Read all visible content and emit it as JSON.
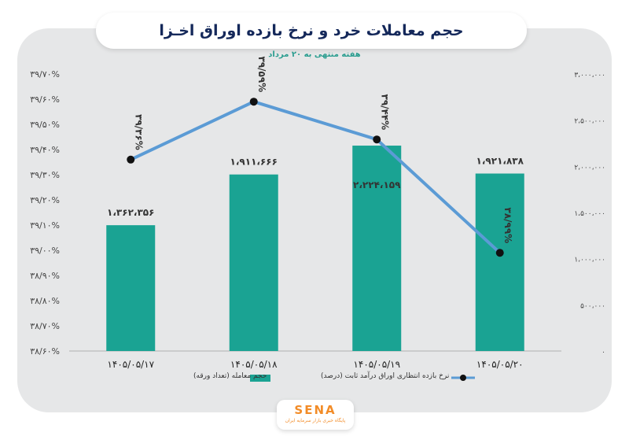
{
  "header": {
    "title": "حجم معاملات خرد و نرخ بازده اوراق اخـزا",
    "subtitle": "هفته منتهی به ۲۰ مرداد",
    "quote_right": "❞",
    "quote_left": "❞"
  },
  "chart_data": {
    "type": "bar+line",
    "categories": [
      "۱۴۰۵/۰۵/۱۷",
      "۱۴۰۵/۰۵/۱۸",
      "۱۴۰۵/۰۵/۱۹",
      "۱۴۰۵/۰۵/۲۰"
    ],
    "bar_series": {
      "name": "حجم معامله (تعداد ورقه)",
      "values": [
        1362356,
        1911666,
        2224159,
        1921838
      ],
      "labels": [
        "۱،۳۶۲،۳۵۶",
        "۱،۹۱۱،۶۶۶",
        "۲،۲۲۴،۱۵۹",
        "۱،۹۲۱،۸۳۸"
      ],
      "color": "#1aa393",
      "axis": "right",
      "ylim": [
        0,
        3000000
      ],
      "ticks": [
        0,
        500000,
        1000000,
        1500000,
        2000000,
        2500000,
        3000000
      ],
      "tick_labels": [
        "۰",
        "۵۰۰،۰۰۰",
        "۱،۰۰۰،۰۰۰",
        "۱،۵۰۰،۰۰۰",
        "۲،۰۰۰،۰۰۰",
        "۲،۵۰۰،۰۰۰",
        "۳،۰۰۰،۰۰۰"
      ]
    },
    "line_series": {
      "name": "نرخ بازده انتظاری اوراق درآمد ثابت (درصد)",
      "values": [
        39.36,
        39.59,
        39.44,
        38.99
      ],
      "labels": [
        "۳۹/۳۶%",
        "۳۹/۵۹%",
        "۳۹/۴۴%",
        "۳۸/۹۹%"
      ],
      "color": "#5b9bd5",
      "marker_color": "#111111",
      "axis": "left",
      "ylim": [
        38.6,
        39.7
      ],
      "ticks": [
        38.6,
        38.7,
        38.8,
        38.9,
        39.0,
        39.1,
        39.2,
        39.3,
        39.4,
        39.5,
        39.6,
        39.7
      ],
      "tick_labels": [
        "۳۸/۶۰%",
        "۳۸/۷۰%",
        "۳۸/۸۰%",
        "۳۸/۹۰%",
        "۳۹/۰۰%",
        "۳۹/۱۰%",
        "۳۹/۲۰%",
        "۳۹/۳۰%",
        "۳۹/۴۰%",
        "۳۹/۵۰%",
        "۳۹/۶۰%",
        "۳۹/۷۰%"
      ]
    },
    "legend_placement": "bottom"
  },
  "logo": {
    "text": "SENA",
    "subtext": "پایگاه خبری بازار سرمایه ایران"
  }
}
